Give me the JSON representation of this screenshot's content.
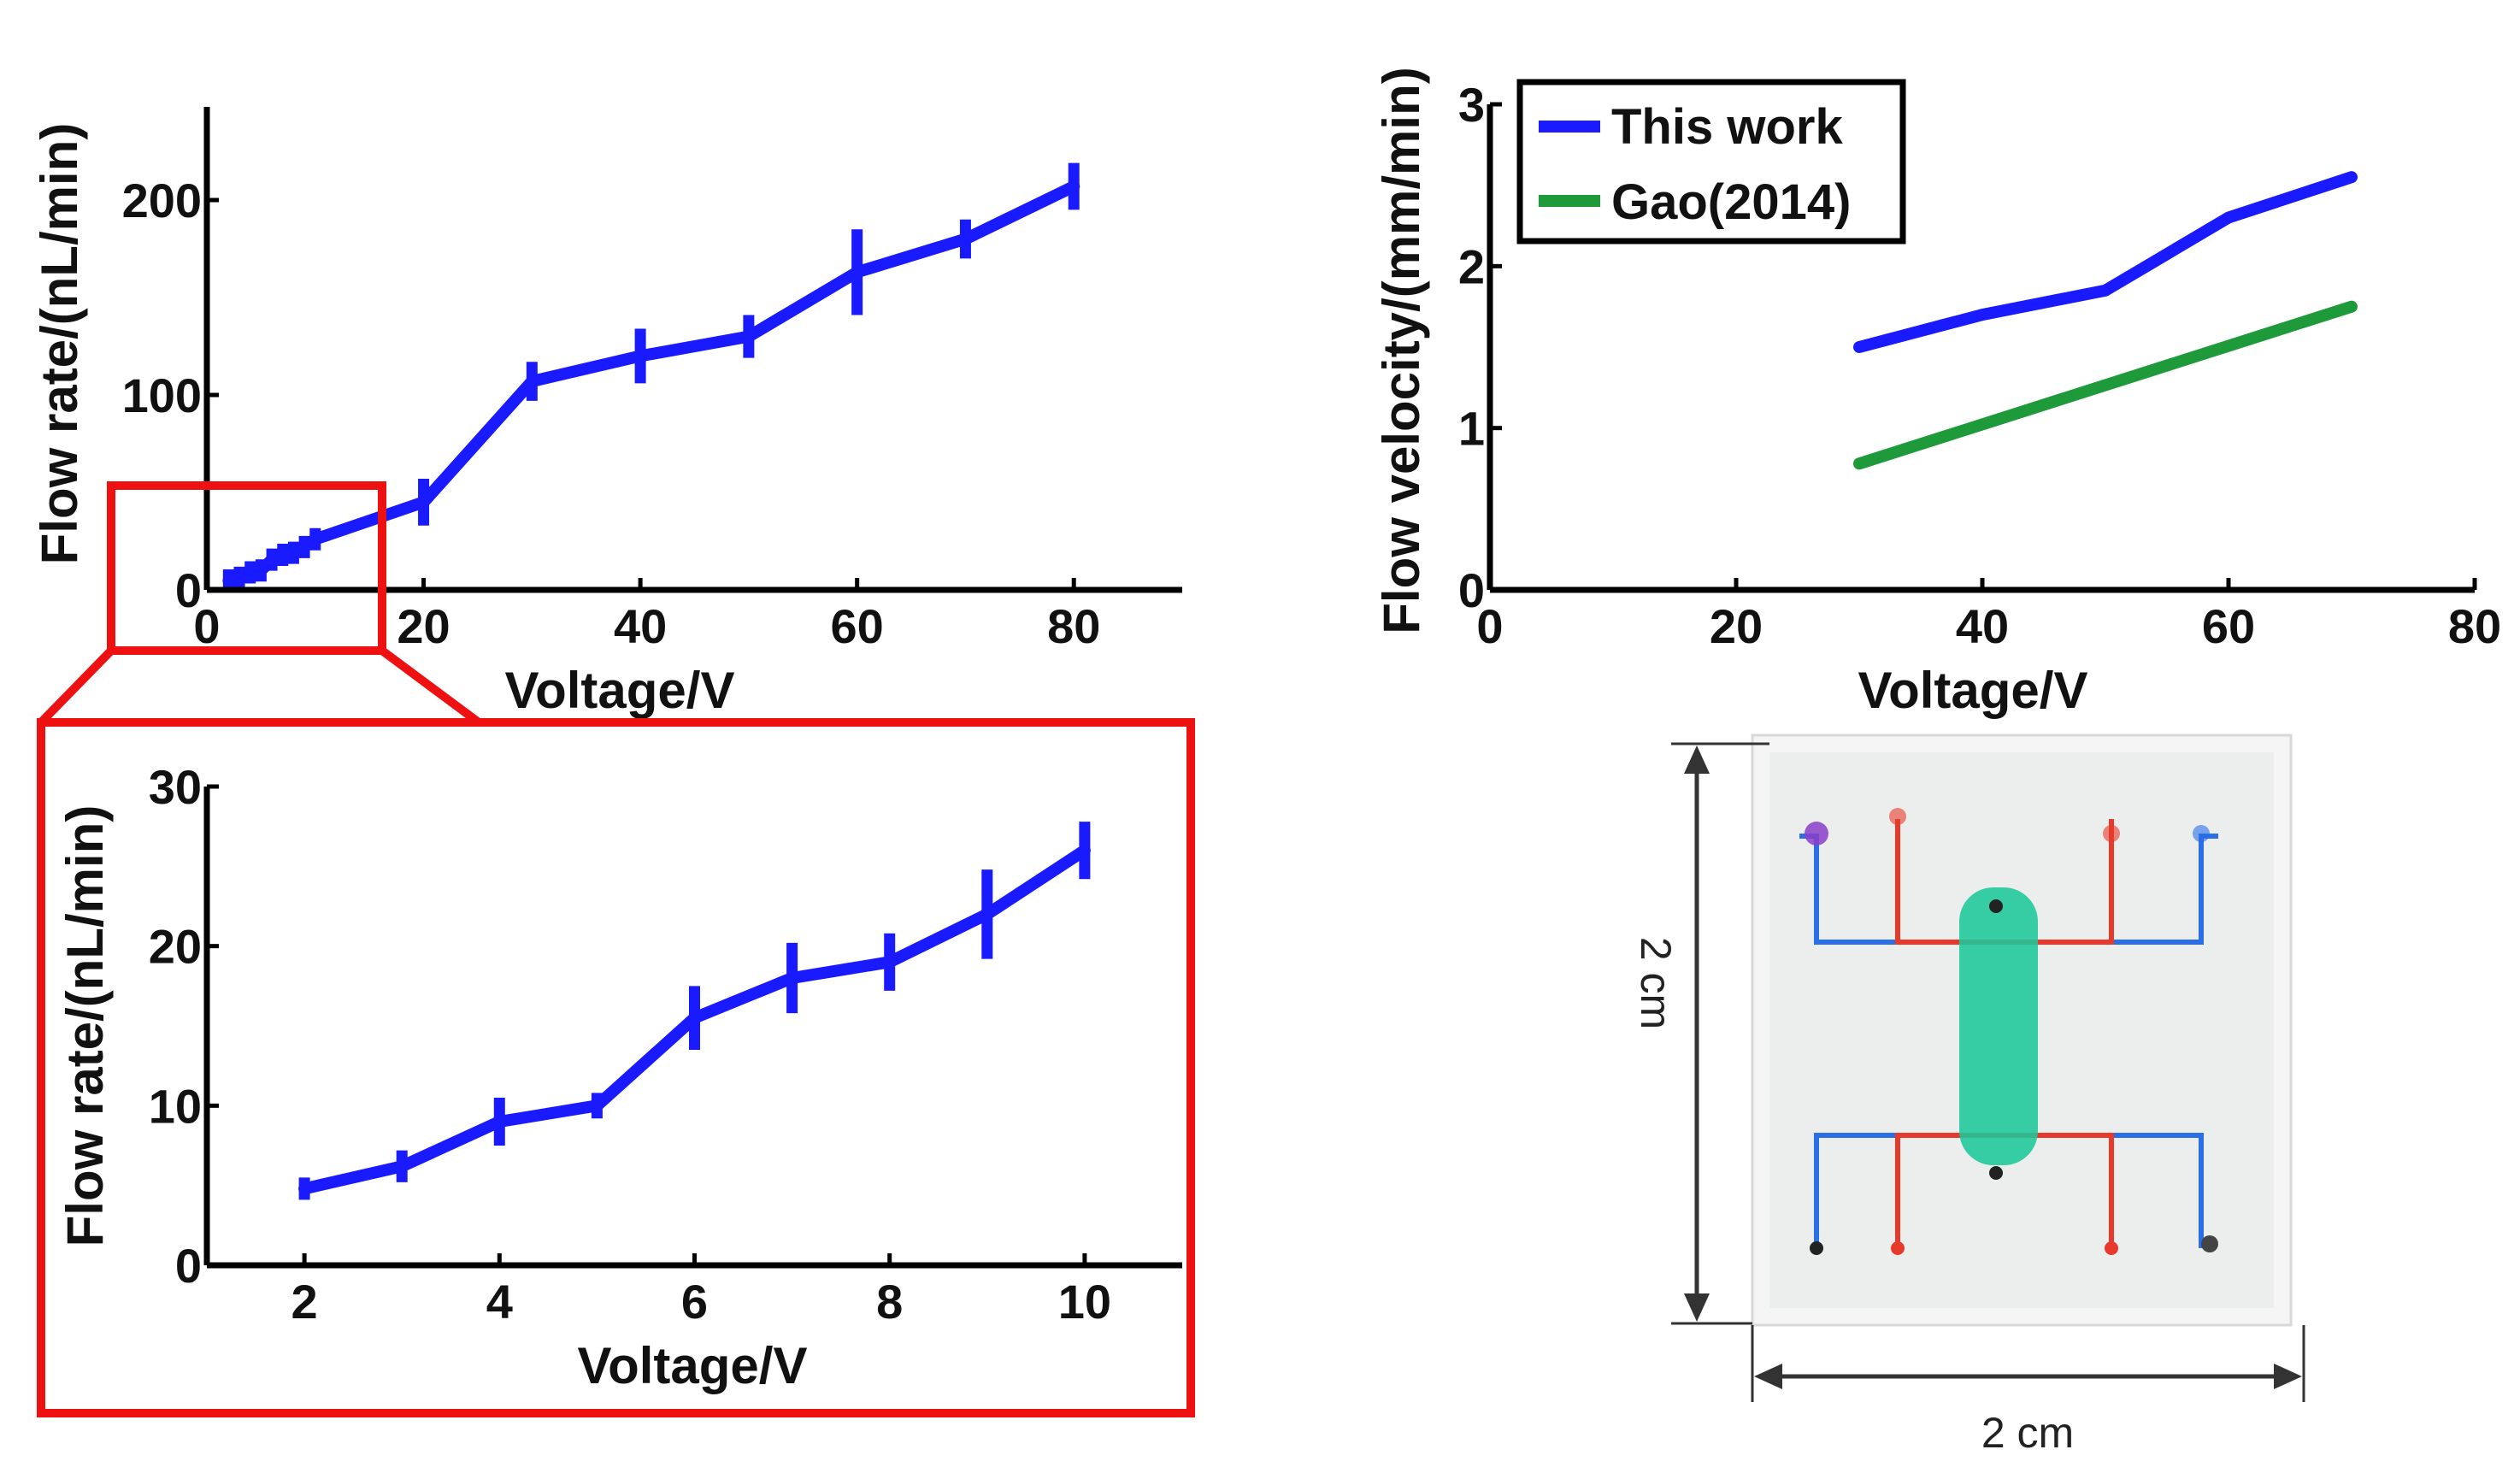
{
  "chart_data": [
    {
      "id": "main",
      "type": "line",
      "xlabel": "Voltage/V",
      "ylabel": "Flow rate/(nL/min)",
      "xlim": [
        0,
        90
      ],
      "ylim": [
        0,
        250
      ],
      "xticks": [
        0,
        20,
        40,
        60,
        80
      ],
      "yticks": [
        0,
        100,
        200
      ],
      "series": [
        {
          "name": "Flow rate",
          "color": "#1a1aff",
          "x": [
            2,
            3,
            4,
            5,
            6,
            7,
            8,
            9,
            10,
            20,
            30,
            40,
            50,
            60,
            70,
            80
          ],
          "y": [
            4.8,
            6.2,
            9,
            10,
            15.5,
            18,
            19,
            22,
            26,
            45,
            107,
            120,
            130,
            163,
            180,
            207
          ],
          "err": [
            0.5,
            1,
            1.5,
            0.8,
            2,
            2.2,
            1.8,
            2.8,
            1.8,
            12,
            10,
            14,
            11,
            22,
            10,
            12
          ]
        }
      ]
    },
    {
      "id": "inset",
      "type": "line",
      "xlabel": "Voltage/V",
      "ylabel": "Flow rate/(nL/min)",
      "xlim": [
        1,
        11
      ],
      "ylim": [
        0,
        30
      ],
      "xticks": [
        2,
        4,
        6,
        8,
        10
      ],
      "yticks": [
        0,
        10,
        20,
        30
      ],
      "series": [
        {
          "name": "Flow rate",
          "color": "#1a1aff",
          "x": [
            2,
            3,
            4,
            5,
            6,
            7,
            8,
            9,
            10
          ],
          "y": [
            4.8,
            6.2,
            9,
            10,
            15.5,
            18,
            19,
            22,
            26
          ],
          "err": [
            0.5,
            1,
            1.5,
            0.8,
            2,
            2.2,
            1.8,
            2.8,
            1.8
          ]
        }
      ]
    },
    {
      "id": "velocity",
      "type": "line",
      "xlabel": "Voltage/V",
      "ylabel": "Flow velocity/(mm/min)",
      "xlim": [
        0,
        80
      ],
      "ylim": [
        0,
        3
      ],
      "xticks": [
        0,
        20,
        40,
        60,
        80
      ],
      "yticks": [
        0,
        1,
        2,
        3
      ],
      "legend": "top-left",
      "series": [
        {
          "name": "This work",
          "color": "#1a1aff",
          "x": [
            30,
            40,
            50,
            60,
            70
          ],
          "y": [
            1.5,
            1.7,
            1.85,
            2.3,
            2.55
          ]
        },
        {
          "name": "Gao(2014)",
          "color": "#1f9a3a",
          "x": [
            30,
            70
          ],
          "y": [
            0.78,
            1.75
          ]
        }
      ]
    }
  ],
  "photo": {
    "height_label": "2 cm",
    "width_label": "2 cm"
  }
}
